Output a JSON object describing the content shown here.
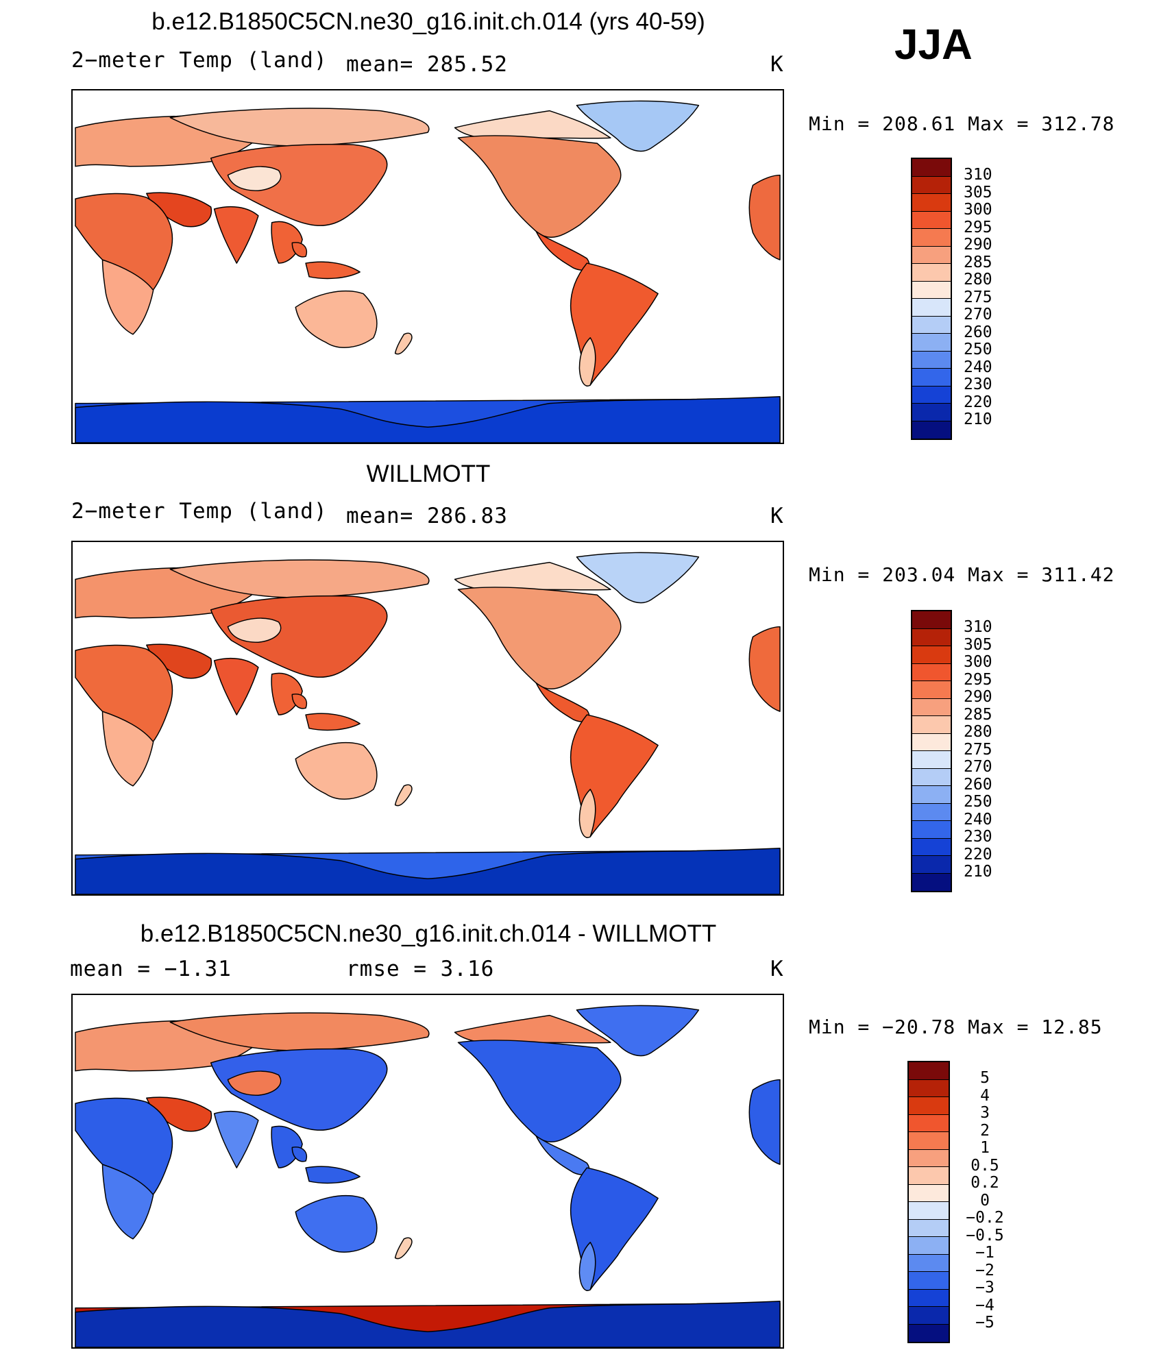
{
  "season": "JJA",
  "colors": {
    "continent_outline": "#000000",
    "ocean": "#ffffff"
  },
  "panels": [
    {
      "title": "b.e12.B1850C5CN.ne30_g16.init.ch.014 (yrs 40-59)",
      "left_label": "2−meter Temp (land)",
      "center_label": "mean=  285.52",
      "unit": "K",
      "minmax": "Min  =  208.61  Max  =  312.78",
      "palette": "temp",
      "regions": {
        "greenland": "#a6c8f5",
        "arctic_na": "#fbd9c5",
        "north_america": "#f08a60",
        "mexico": "#f0562e",
        "south_america": "#f05a2e",
        "patagonia": "#fcc9ab",
        "europe": "#f6a07a",
        "siberia": "#f7b89a",
        "asia": "#f07048",
        "tibet": "#fbe4d4",
        "middle_east": "#e4451f",
        "africa": "#ee6a3f",
        "southern_africa": "#fba887",
        "india": "#ee5a32",
        "se_asia": "#f06236",
        "australia": "#fbb797",
        "nz": "#fcc9ab",
        "antarctica": "#0a3ccf",
        "antarctica_low": "#1c4fe0"
      }
    },
    {
      "title": "WILLMOTT",
      "left_label": "2−meter Temp (land)",
      "center_label": "mean=  286.83",
      "unit": "K",
      "minmax": "Min  =  203.04  Max  =  311.42",
      "palette": "temp",
      "regions": {
        "greenland": "#b9d3f7",
        "arctic_na": "#fcdcc8",
        "north_america": "#f39a72",
        "mexico": "#ee5a2e",
        "south_america": "#f05a2e",
        "patagonia": "#fcc9ab",
        "europe": "#f4936b",
        "siberia": "#f6a886",
        "asia": "#ea5a32",
        "tibet": "#fbd9c5",
        "middle_east": "#e0451d",
        "africa": "#ef6a3c",
        "southern_africa": "#fbb190",
        "india": "#ed5530",
        "se_asia": "#f06236",
        "australia": "#fbb797",
        "nz": "#fcc9ab",
        "antarctica": "#0533b8",
        "antarctica_low": "#2e64ea"
      }
    },
    {
      "title": "b.e12.B1850C5CN.ne30_g16.init.ch.014 - WILLMOTT",
      "left_label": "mean  =    −1.31",
      "center_label": "rmse  =     3.16",
      "unit": "K",
      "minmax": "Min  =  −20.78  Max  =    12.85",
      "palette": "diff",
      "regions": {
        "greenland": "#3f6ff0",
        "arctic_na": "#f48a62",
        "north_america": "#2d5ee8",
        "mexico": "#4a7af2",
        "south_america": "#2a5ae8",
        "patagonia": "#5f8cf4",
        "europe": "#f49670",
        "siberia": "#f2895f",
        "asia": "#3360ea",
        "tibet": "#f17a52",
        "middle_east": "#e5451d",
        "africa": "#2d5ee8",
        "southern_africa": "#4a7af2",
        "india": "#5a88f3",
        "se_asia": "#2f5fe8",
        "australia": "#3f6ff0",
        "nz": "#fbd0b4",
        "antarctica": "#0a2fb0",
        "antarctica_low": "#c41a05"
      }
    }
  ],
  "legends": {
    "temp": {
      "labels": [
        "310",
        "305",
        "300",
        "295",
        "290",
        "285",
        "280",
        "275",
        "270",
        "260",
        "250",
        "240",
        "230",
        "220",
        "210"
      ],
      "colors": [
        "#7a0a0a",
        "#b52208",
        "#d93a10",
        "#f0562e",
        "#f57a50",
        "#f7a07e",
        "#fcc8ad",
        "#fde9dc",
        "#d8e6fa",
        "#b4cdf6",
        "#8cb0f3",
        "#5c8af0",
        "#3366ea",
        "#1542d6",
        "#0a28ac",
        "#050f80"
      ]
    },
    "diff": {
      "labels": [
        "5",
        "4",
        "3",
        "2",
        "1",
        "0.5",
        "0.2",
        "0",
        "−0.2",
        "−0.5",
        "−1",
        "−2",
        "−3",
        "−4",
        "−5"
      ],
      "colors": [
        "#7a0a0a",
        "#b52208",
        "#d93a10",
        "#f0562e",
        "#f57a50",
        "#f7a07e",
        "#fcc8ad",
        "#fde9dc",
        "#d8e6fa",
        "#b4cdf6",
        "#8cb0f3",
        "#5c8af0",
        "#3366ea",
        "#1542d6",
        "#0a28ac",
        "#050f80"
      ]
    }
  }
}
